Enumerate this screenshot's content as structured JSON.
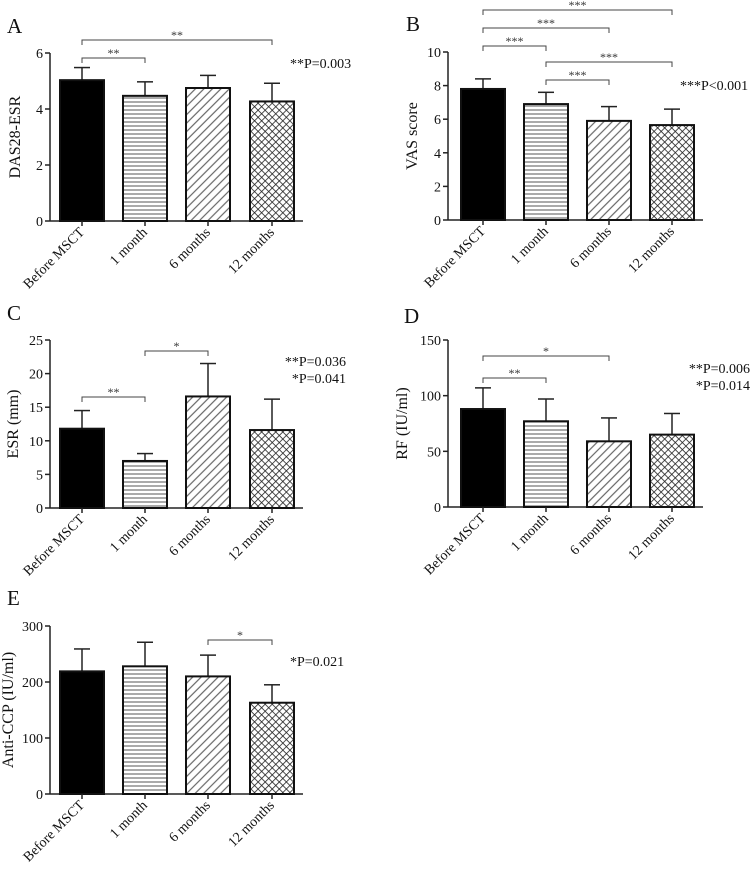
{
  "colors": {
    "bar_outline": "#111111",
    "fill_solid": "#000000",
    "pattern_line": "#555555",
    "bracket": "#444444"
  },
  "chart_data": [
    {
      "type": "bar",
      "panel": "A",
      "ylabel": "DAS28-ESR",
      "categories": [
        "Before MSCT",
        "1 month",
        "6 months",
        "12 months"
      ],
      "fills": [
        "solid",
        "horizontal-lines",
        "diagonal-lines",
        "crosshatch"
      ],
      "values": [
        5.03,
        4.47,
        4.75,
        4.27
      ],
      "errors": [
        0.45,
        0.5,
        0.45,
        0.65
      ],
      "ylim": [
        0,
        6
      ],
      "yticks": [
        0,
        2,
        4,
        6
      ],
      "comparisons": [
        {
          "from": 0,
          "to": 1,
          "label": "**"
        },
        {
          "from": 0,
          "to": 3,
          "label": "**"
        }
      ],
      "pvalues": [
        "**P=0.003"
      ]
    },
    {
      "type": "bar",
      "panel": "B",
      "ylabel": "VAS score",
      "categories": [
        "Before MSCT",
        "1 month",
        "6 months",
        "12 months"
      ],
      "fills": [
        "solid",
        "horizontal-lines",
        "diagonal-lines",
        "crosshatch"
      ],
      "values": [
        7.8,
        6.9,
        5.9,
        5.65
      ],
      "errors": [
        0.6,
        0.7,
        0.85,
        0.95
      ],
      "ylim": [
        0,
        10
      ],
      "yticks": [
        0,
        2,
        4,
        6,
        8,
        10
      ],
      "comparisons": [
        {
          "from": 0,
          "to": 3,
          "label": "***"
        },
        {
          "from": 0,
          "to": 2,
          "label": "***"
        },
        {
          "from": 0,
          "to": 1,
          "label": "***"
        },
        {
          "from": 1,
          "to": 3,
          "label": "***"
        },
        {
          "from": 1,
          "to": 2,
          "label": "***"
        }
      ],
      "pvalues": [
        "***P<0.001"
      ]
    },
    {
      "type": "bar",
      "panel": "C",
      "ylabel": "ESR (mm)",
      "categories": [
        "Before MSCT",
        "1 month",
        "6 months",
        "12 months"
      ],
      "fills": [
        "solid",
        "horizontal-lines",
        "diagonal-lines",
        "crosshatch"
      ],
      "values": [
        11.8,
        7.0,
        16.6,
        11.6
      ],
      "errors": [
        2.7,
        1.1,
        4.9,
        4.6
      ],
      "ylim": [
        0,
        25
      ],
      "yticks": [
        0,
        5,
        10,
        15,
        20,
        25
      ],
      "comparisons": [
        {
          "from": 1,
          "to": 2,
          "label": "*"
        },
        {
          "from": 0,
          "to": 1,
          "label": "**"
        }
      ],
      "pvalues": [
        "**P=0.036",
        "*P=0.041"
      ]
    },
    {
      "type": "bar",
      "panel": "D",
      "ylabel": "RF (IU/ml)",
      "categories": [
        "Before MSCT",
        "1 month",
        "6 months",
        "12 months"
      ],
      "fills": [
        "solid",
        "horizontal-lines",
        "diagonal-lines",
        "crosshatch"
      ],
      "values": [
        88,
        77,
        59,
        65
      ],
      "errors": [
        19,
        20,
        21,
        19
      ],
      "ylim": [
        0,
        150
      ],
      "yticks": [
        0,
        50,
        100,
        150
      ],
      "comparisons": [
        {
          "from": 0,
          "to": 2,
          "label": "*"
        },
        {
          "from": 0,
          "to": 1,
          "label": "**"
        }
      ],
      "pvalues": [
        "**P=0.006",
        "*P=0.014"
      ]
    },
    {
      "type": "bar",
      "panel": "E",
      "ylabel": "Anti-CCP (IU/ml)",
      "categories": [
        "Before MSCT",
        "1 month",
        "6 months",
        "12 months"
      ],
      "fills": [
        "solid",
        "horizontal-lines",
        "diagonal-lines",
        "crosshatch"
      ],
      "values": [
        219,
        228,
        210,
        163
      ],
      "errors": [
        40,
        43,
        38,
        32
      ],
      "ylim": [
        0,
        300
      ],
      "yticks": [
        0,
        100,
        200,
        300
      ],
      "comparisons": [
        {
          "from": 2,
          "to": 3,
          "label": "*"
        }
      ],
      "pvalues": [
        "*P=0.021"
      ]
    }
  ]
}
